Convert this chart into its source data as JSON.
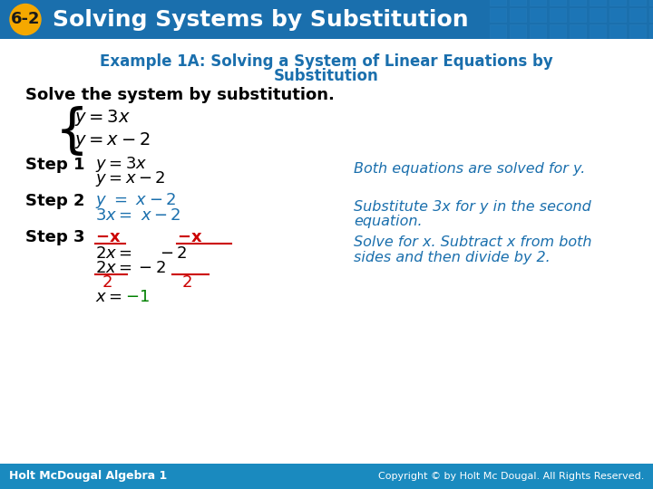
{
  "title_text": "Solving Systems by Substitution",
  "title_number": "6-2",
  "title_bg_color": "#1a6fad",
  "title_number_bg": "#f5a800",
  "title_fg": "#ffffff",
  "body_bg": "#ffffff",
  "example_title": "Example 1A: Solving a System of Linear Equations by\n         Substitution",
  "example_title_color": "#1a6fad",
  "solve_text": "Solve the system by substitution.",
  "solve_color": "#000000",
  "step_bold_color": "#000000",
  "step_italic_color": "#1a6fad",
  "red_color": "#cc0000",
  "green_color": "#008000",
  "footer_bg": "#1a8abf",
  "footer_left": "Holt McDougal Algebra 1",
  "footer_right": "Copyright © by Holt Mc Dougal. All Rights Reserved.",
  "footer_fg": "#ffffff"
}
